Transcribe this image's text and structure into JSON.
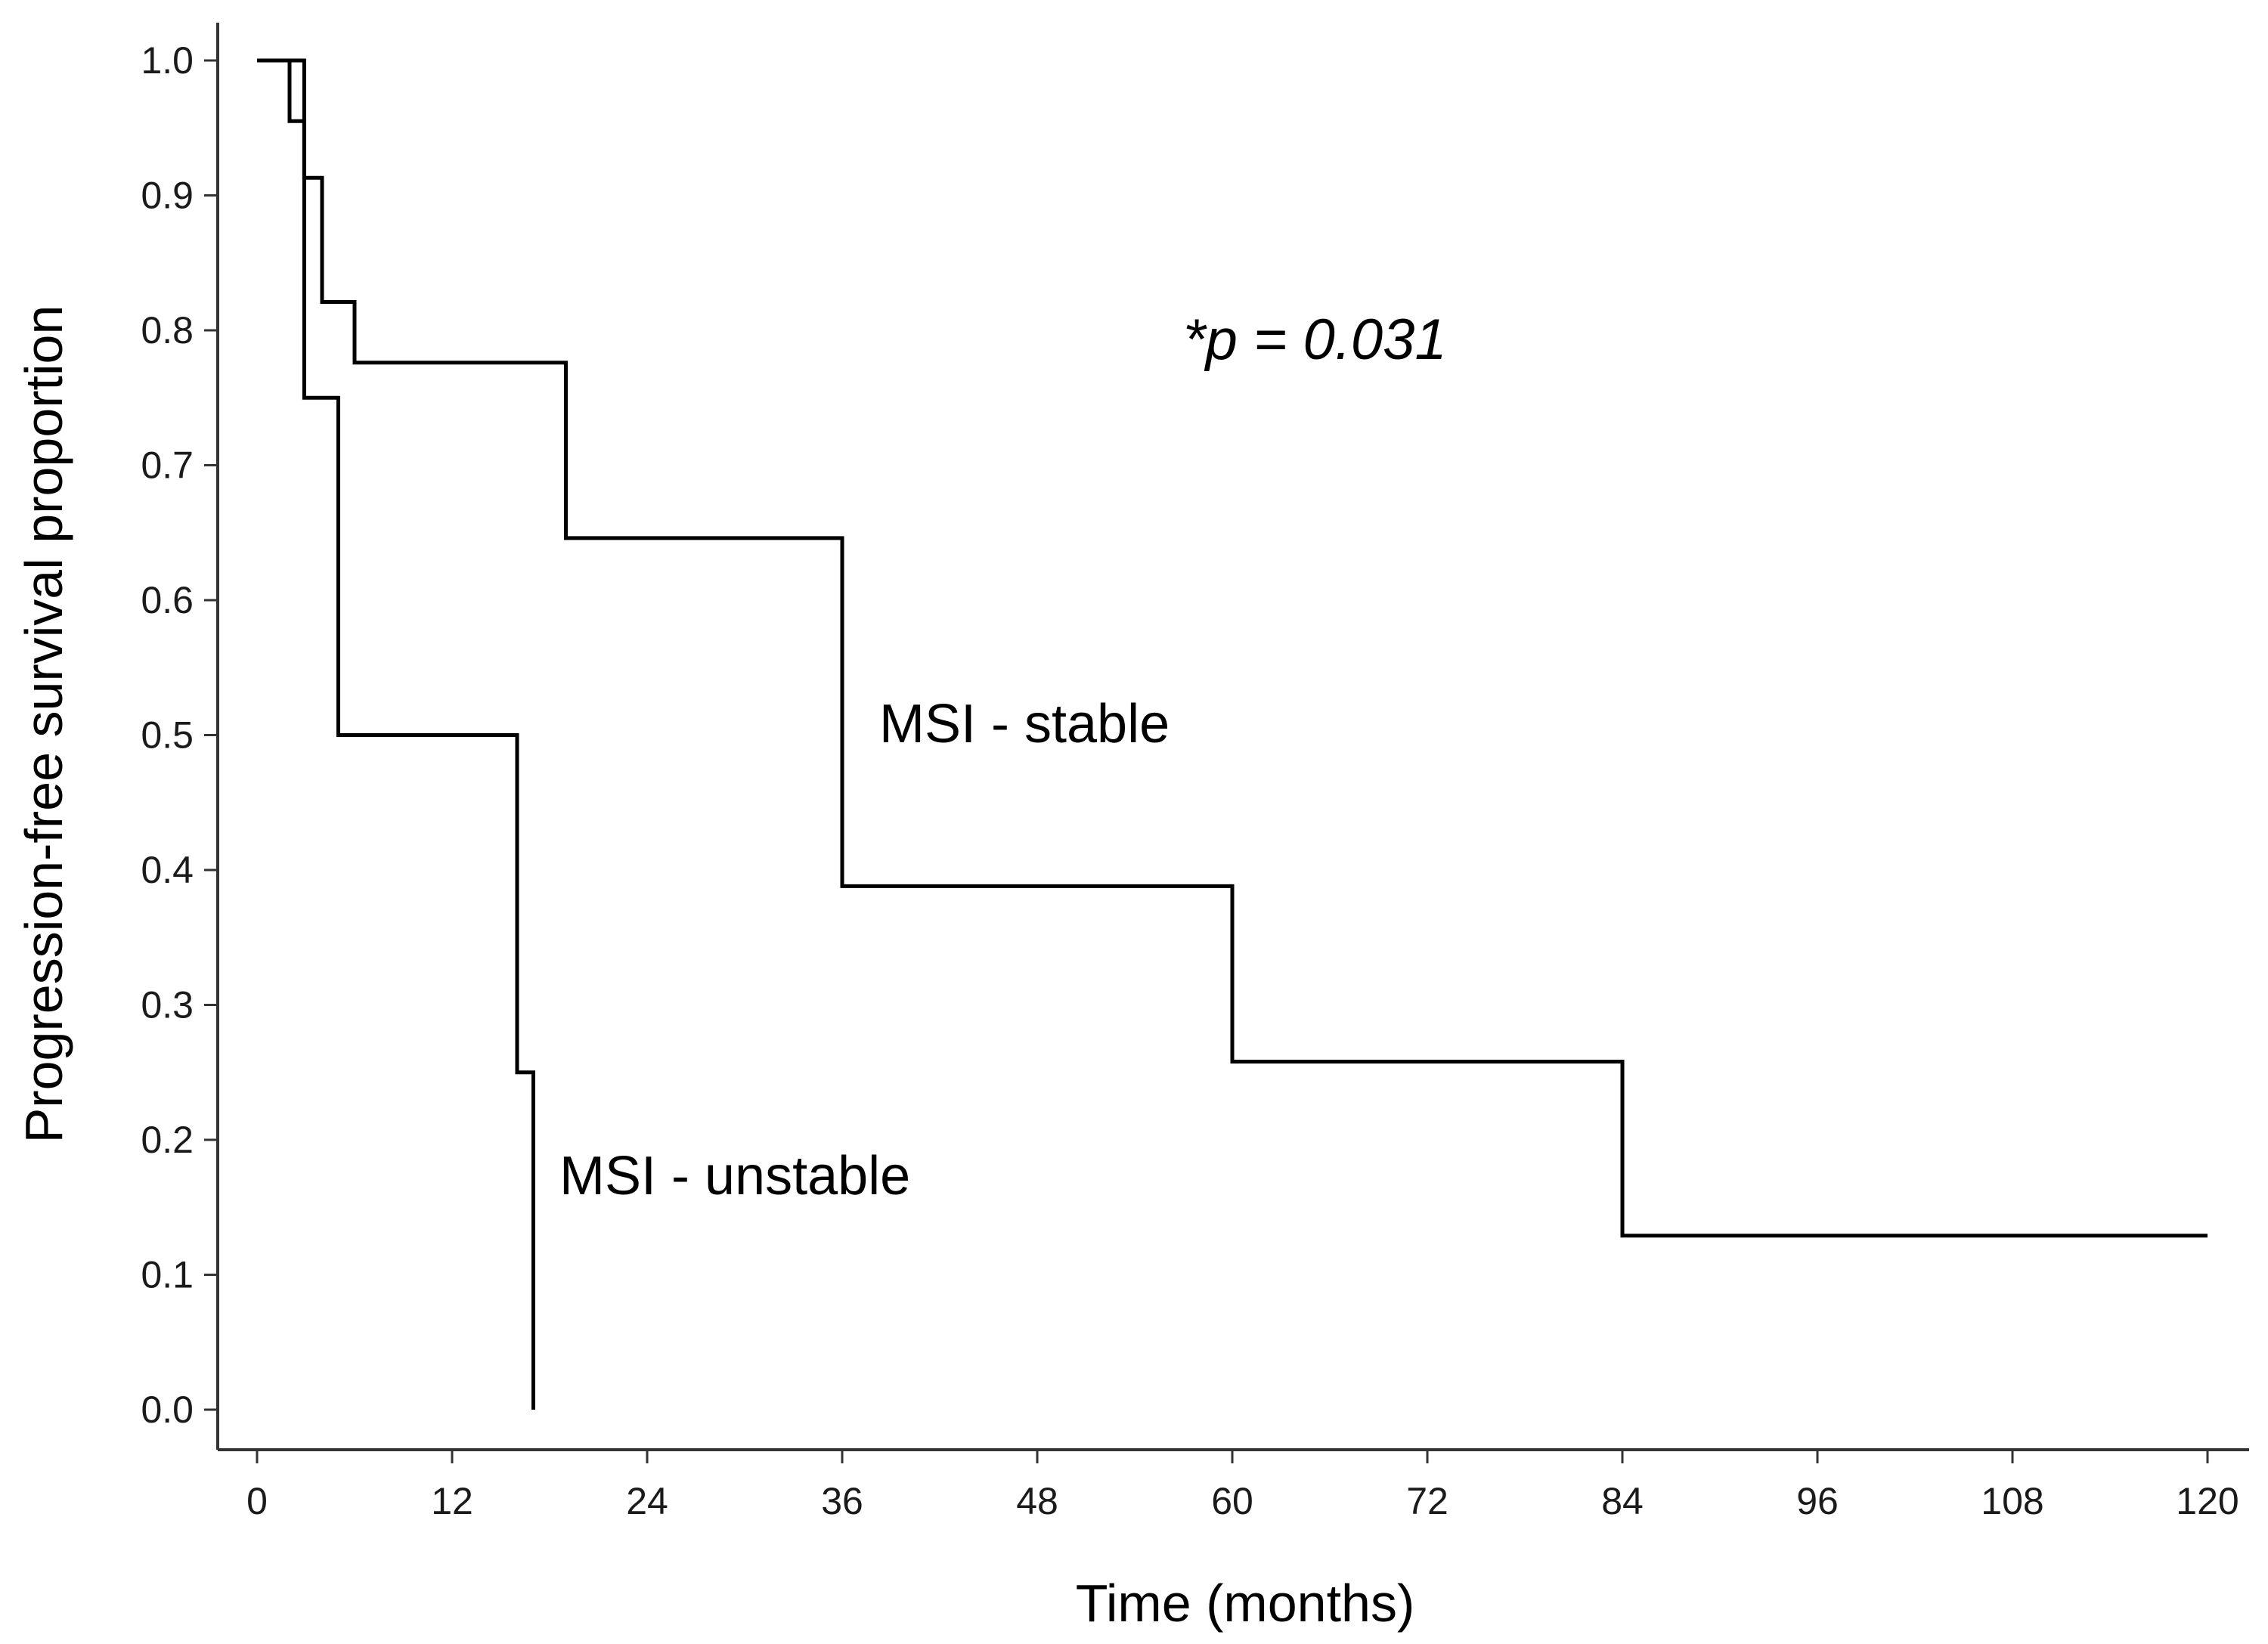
{
  "chart_data": {
    "type": "line",
    "subtype": "kaplan-meier-step",
    "title": "",
    "xlabel": "Time (months)",
    "ylabel": "Progression-free survival proportion",
    "xlim": [
      0,
      120
    ],
    "ylim": [
      0.0,
      1.0
    ],
    "x_ticks": [
      0,
      12,
      24,
      36,
      48,
      60,
      72,
      84,
      96,
      108,
      120
    ],
    "y_ticks": [
      "0.0",
      "0.1",
      "0.2",
      "0.3",
      "0.4",
      "0.5",
      "0.6",
      "0.7",
      "0.8",
      "0.9",
      "1.0"
    ],
    "grid": false,
    "annotation": "*p = 0.031",
    "series": [
      {
        "name": "MSI - stable",
        "points": [
          [
            0,
            1.0
          ],
          [
            2.9,
            1.0
          ],
          [
            2.9,
            0.913
          ],
          [
            4,
            0.913
          ],
          [
            4,
            0.821
          ],
          [
            6,
            0.821
          ],
          [
            6,
            0.776
          ],
          [
            19,
            0.776
          ],
          [
            19,
            0.646
          ],
          [
            36,
            0.646
          ],
          [
            36,
            0.388
          ],
          [
            60,
            0.388
          ],
          [
            60,
            0.258
          ],
          [
            84,
            0.258
          ],
          [
            84,
            0.129
          ],
          [
            120,
            0.129
          ]
        ]
      },
      {
        "name": "MSI - unstable",
        "points": [
          [
            0,
            1.0
          ],
          [
            2,
            1.0
          ],
          [
            2,
            0.955
          ],
          [
            2.9,
            0.955
          ],
          [
            2.9,
            0.75
          ],
          [
            5,
            0.75
          ],
          [
            5,
            0.5
          ],
          [
            16,
            0.5
          ],
          [
            16,
            0.25
          ],
          [
            17,
            0.25
          ],
          [
            17,
            0.0
          ]
        ]
      }
    ]
  }
}
